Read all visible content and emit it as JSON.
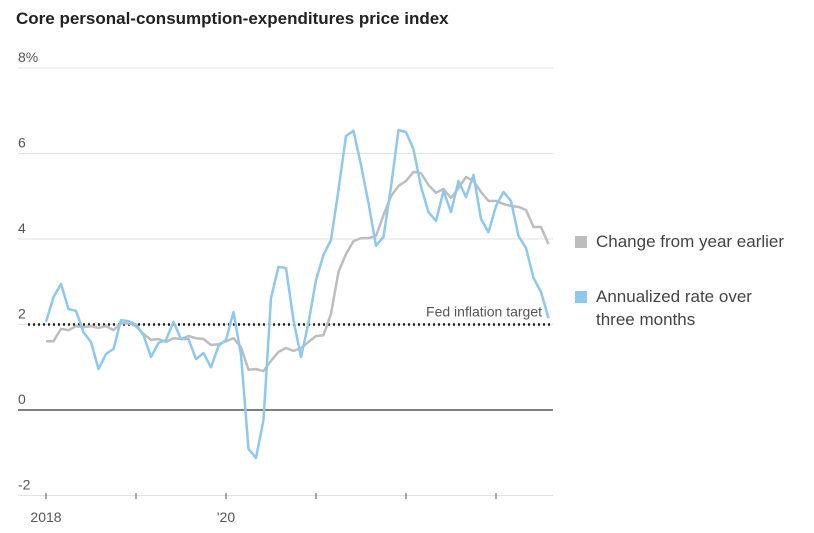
{
  "chart_data": {
    "type": "line",
    "title": "Core personal-consumption-expenditures price index",
    "ylim": [
      -2,
      8
    ],
    "yticks": [
      -2,
      0,
      2,
      4,
      6,
      8
    ],
    "ytick_labels": [
      "-2",
      "0",
      "2",
      "4",
      "6",
      "8%"
    ],
    "xticks": [
      "2018-01",
      "2019-01",
      "2020-01",
      "2021-01",
      "2022-01",
      "2023-01"
    ],
    "xtick_labels": [
      "2018",
      "",
      "'20",
      "",
      "",
      ""
    ],
    "grid": true,
    "legend_placement": "right",
    "reference_line": {
      "value": 2,
      "label": "Fed inflation target",
      "style": "dotted"
    },
    "x": [
      "2018-01",
      "2018-02",
      "2018-03",
      "2018-04",
      "2018-05",
      "2018-06",
      "2018-07",
      "2018-08",
      "2018-09",
      "2018-10",
      "2018-11",
      "2018-12",
      "2019-01",
      "2019-02",
      "2019-03",
      "2019-04",
      "2019-05",
      "2019-06",
      "2019-07",
      "2019-08",
      "2019-09",
      "2019-10",
      "2019-11",
      "2019-12",
      "2020-01",
      "2020-02",
      "2020-03",
      "2020-04",
      "2020-05",
      "2020-06",
      "2020-07",
      "2020-08",
      "2020-09",
      "2020-10",
      "2020-11",
      "2020-12",
      "2021-01",
      "2021-02",
      "2021-03",
      "2021-04",
      "2021-05",
      "2021-06",
      "2021-07",
      "2021-08",
      "2021-09",
      "2021-10",
      "2021-11",
      "2021-12",
      "2022-01",
      "2022-02",
      "2022-03",
      "2022-04",
      "2022-05",
      "2022-06",
      "2022-07",
      "2022-08",
      "2022-09",
      "2022-10",
      "2022-11",
      "2022-12",
      "2023-01",
      "2023-02",
      "2023-03",
      "2023-04",
      "2023-05",
      "2023-06",
      "2023-07",
      "2023-08"
    ],
    "series": [
      {
        "name": "Change from year earlier",
        "color": "#bdbdbd",
        "values": [
          1.61,
          1.61,
          1.9,
          1.87,
          1.96,
          1.94,
          1.96,
          1.92,
          1.96,
          1.87,
          2.03,
          2.03,
          1.96,
          1.78,
          1.64,
          1.66,
          1.59,
          1.68,
          1.66,
          1.73,
          1.68,
          1.66,
          1.52,
          1.54,
          1.61,
          1.68,
          1.47,
          0.94,
          0.96,
          0.91,
          1.15,
          1.36,
          1.45,
          1.38,
          1.45,
          1.59,
          1.73,
          1.75,
          2.25,
          3.23,
          3.65,
          3.95,
          4.02,
          4.02,
          4.07,
          4.56,
          5.0,
          5.24,
          5.36,
          5.57,
          5.54,
          5.26,
          5.08,
          5.17,
          4.96,
          5.19,
          5.45,
          5.36,
          5.1,
          4.89,
          4.89,
          4.82,
          4.77,
          4.75,
          4.68,
          4.28,
          4.28,
          3.88
        ]
      },
      {
        "name": "Annualized rate over three months",
        "name_lines": [
          "Annualized rate over",
          "three months"
        ],
        "color": "#8ec8ee",
        "values": [
          2.06,
          2.64,
          2.95,
          2.36,
          2.32,
          1.82,
          1.59,
          0.96,
          1.31,
          1.43,
          2.1,
          2.08,
          2.0,
          1.75,
          1.24,
          1.57,
          1.64,
          2.06,
          1.66,
          1.66,
          1.19,
          1.33,
          1.0,
          1.5,
          1.64,
          2.29,
          1.29,
          -0.91,
          -1.12,
          -0.23,
          2.62,
          3.35,
          3.32,
          2.1,
          1.24,
          2.04,
          3.04,
          3.63,
          3.98,
          5.15,
          6.41,
          6.53,
          5.73,
          4.84,
          3.84,
          4.05,
          5.22,
          6.55,
          6.5,
          6.1,
          5.22,
          4.63,
          4.42,
          5.12,
          4.63,
          5.36,
          4.98,
          5.5,
          4.47,
          4.16,
          4.77,
          5.1,
          4.89,
          4.07,
          3.79,
          3.09,
          2.76,
          2.15
        ]
      }
    ]
  }
}
